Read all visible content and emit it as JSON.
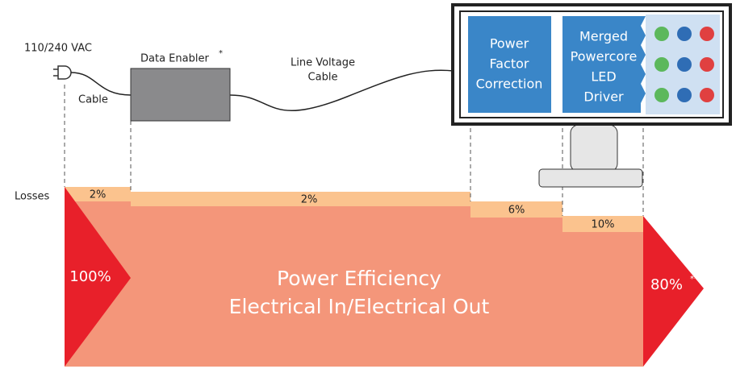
{
  "source": {
    "voltage": "110/240 VAC",
    "cable": "Cable"
  },
  "data_enabler": {
    "label": "Data Enabler",
    "note_mark": "*"
  },
  "line_cable": {
    "lines": [
      "Line Voltage",
      "Cable"
    ]
  },
  "display": {
    "pfc": [
      "Power",
      "Factor",
      "Correction"
    ],
    "driver": [
      "Merged",
      "Powercore",
      "LED",
      "Driver"
    ]
  },
  "flow": {
    "losses_label": "Losses",
    "losses": [
      "2%",
      "2%",
      "6%",
      "10%"
    ],
    "input": "100%",
    "output": "80%",
    "output_note": "**",
    "title": [
      "Power Efficiency",
      "Electrical In/Electrical Out"
    ]
  }
}
